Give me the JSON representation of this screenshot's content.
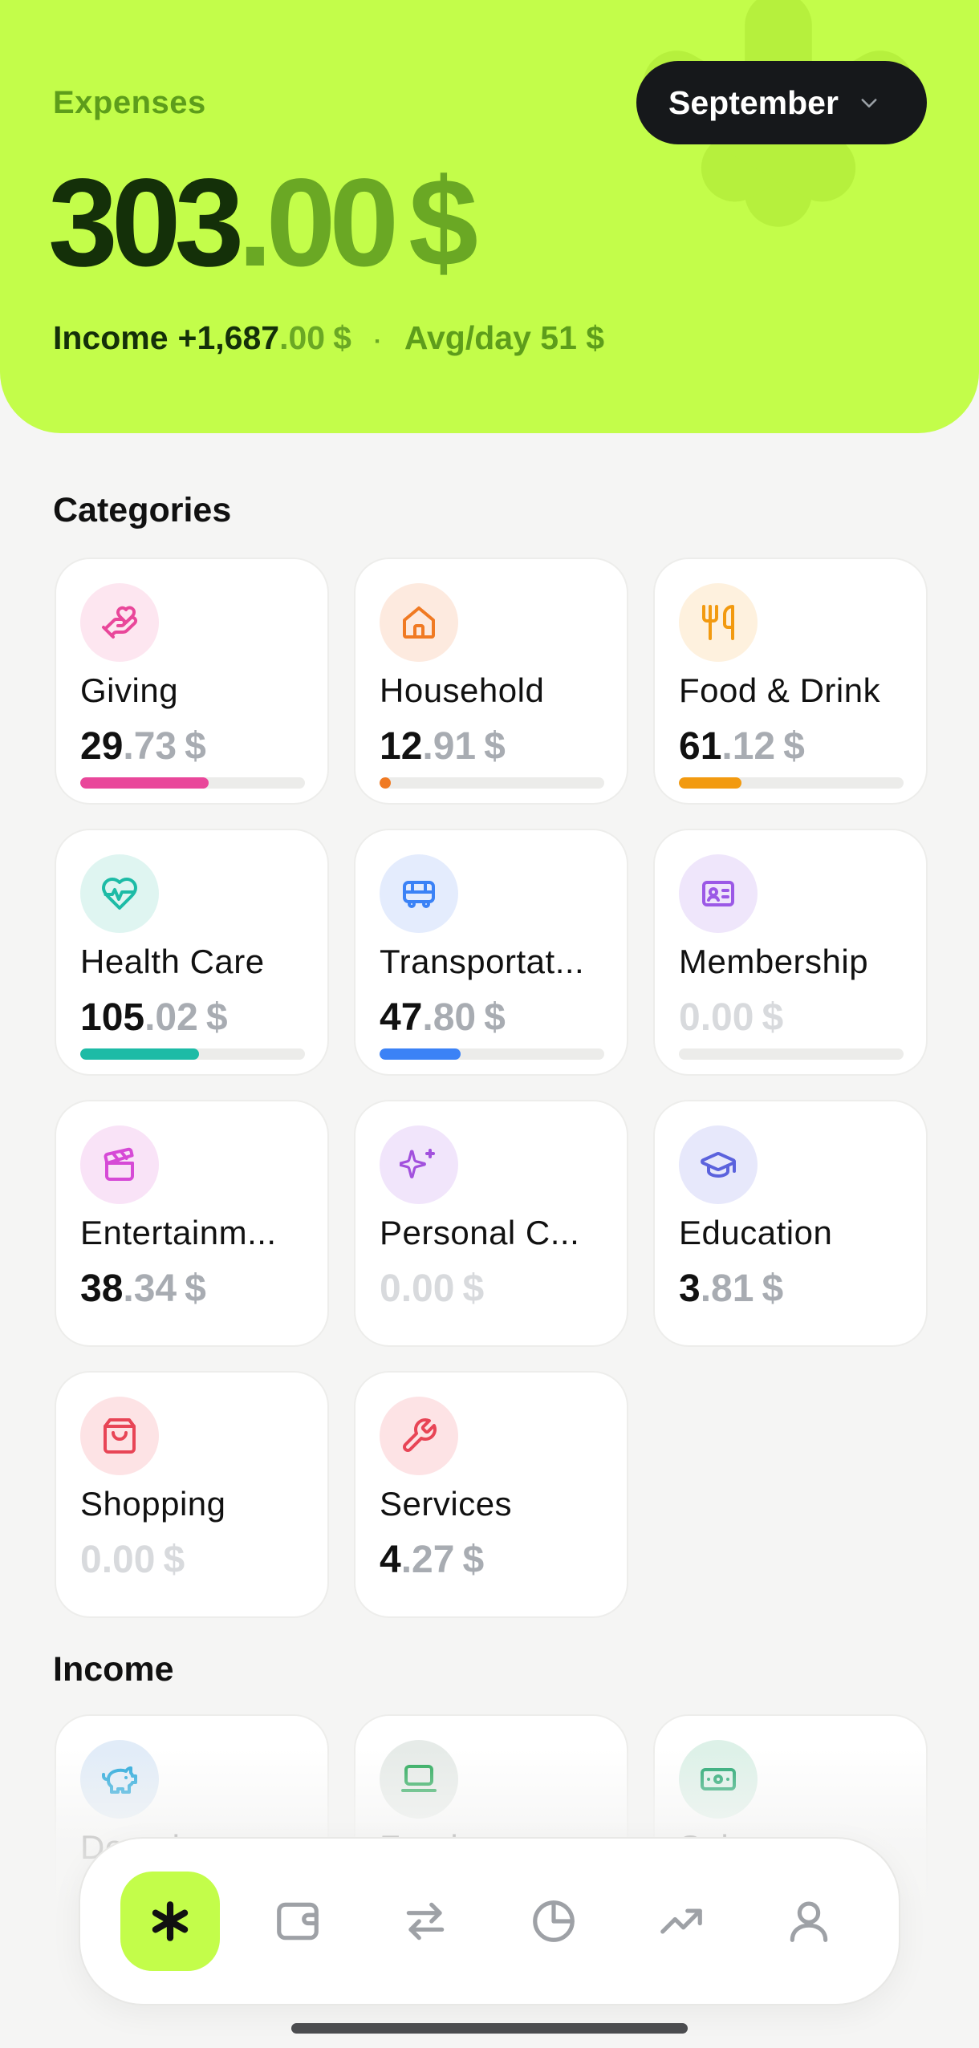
{
  "header": {
    "label": "Expenses",
    "month": "September",
    "total_int": "303",
    "total_dec": ".00",
    "total_cur": "$",
    "income_label": "Income",
    "income_int": "+1,687",
    "income_dec": ".00",
    "income_cur": "$",
    "separator": "·",
    "avg": "Avg/day 51 $"
  },
  "categories_title": "Categories",
  "income_title": "Income",
  "categories": [
    {
      "name": "Giving",
      "int": "29",
      "dec": ".73",
      "cur": "$",
      "icon": "heart-hand-icon",
      "color": "#e9479a",
      "bg": "#fde6f0",
      "progress": 0.57
    },
    {
      "name": "Household",
      "int": "12",
      "dec": ".91",
      "cur": "$",
      "icon": "home-icon",
      "color": "#f07a23",
      "bg": "#fdeadf",
      "progress": 0.05
    },
    {
      "name": "Food & Drink",
      "int": "61",
      "dec": ".12",
      "cur": "$",
      "icon": "utensils-icon",
      "color": "#f29a10",
      "bg": "#fef1de",
      "progress": 0.28
    },
    {
      "name": "Health Care",
      "int": "105",
      "dec": ".02",
      "cur": "$",
      "icon": "heart-pulse-icon",
      "color": "#1dbba6",
      "bg": "#dff5f1",
      "progress": 0.53
    },
    {
      "name": "Transportat...",
      "int": "47",
      "dec": ".80",
      "cur": "$",
      "icon": "bus-icon",
      "color": "#3b82f6",
      "bg": "#e4ecfd",
      "progress": 0.36
    },
    {
      "name": "Membership",
      "int": "0",
      "dec": ".00",
      "cur": "$",
      "icon": "id-card-icon",
      "color": "#9b59e6",
      "bg": "#efe6fb",
      "progress": 0
    },
    {
      "name": "Entertainm...",
      "int": "38",
      "dec": ".34",
      "cur": "$",
      "icon": "clapper-icon",
      "color": "#d64ad6",
      "bg": "#f9e3f7",
      "progress": null
    },
    {
      "name": "Personal C...",
      "int": "0",
      "dec": ".00",
      "cur": "$",
      "icon": "sparkles-icon",
      "color": "#a251dd",
      "bg": "#f1e5fb",
      "progress": null
    },
    {
      "name": "Education",
      "int": "3",
      "dec": ".81",
      "cur": "$",
      "icon": "graduation-cap-icon",
      "color": "#5b62dd",
      "bg": "#e7e8fb",
      "progress": null
    },
    {
      "name": "Shopping",
      "int": "0",
      "dec": ".00",
      "cur": "$",
      "icon": "shopping-bag-icon",
      "color": "#e84556",
      "bg": "#fde3e5",
      "progress": null
    },
    {
      "name": "Services",
      "int": "4",
      "dec": ".27",
      "cur": "$",
      "icon": "wrench-icon",
      "color": "#e84556",
      "bg": "#fde3e5",
      "progress": null
    }
  ],
  "income": [
    {
      "name": "Donations",
      "icon": "piggy-bank-icon",
      "color": "#1aa3d9",
      "bg": "#e1ecf8"
    },
    {
      "name": "Freelance",
      "icon": "laptop-icon",
      "color": "#22a654",
      "bg": "#e6ebe8"
    },
    {
      "name": "Salary",
      "icon": "banknote-icon",
      "color": "#1aa36a",
      "bg": "#ddf1e8"
    }
  ],
  "tabbar": [
    {
      "name": "home",
      "icon": "asterisk-icon",
      "active": true
    },
    {
      "name": "wallet",
      "icon": "wallet-icon",
      "active": false
    },
    {
      "name": "transfers",
      "icon": "arrows-icon",
      "active": false
    },
    {
      "name": "reports",
      "icon": "pie-chart-icon",
      "active": false
    },
    {
      "name": "trends",
      "icon": "trending-up-icon",
      "active": false
    },
    {
      "name": "profile",
      "icon": "user-icon",
      "active": false
    }
  ]
}
